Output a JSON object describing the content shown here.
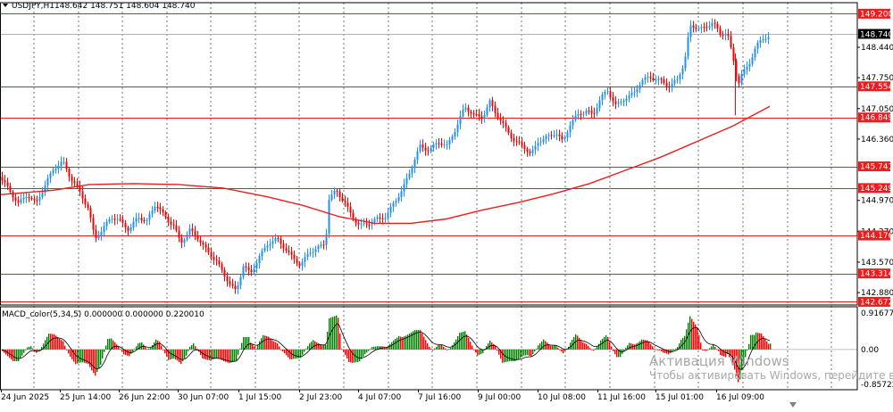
{
  "symbol_title": "USDJPY,H1",
  "ohlc_text": "148.642 148.751 148.604 148.740",
  "price_axis_labels": [
    "148.440",
    "147.750",
    "147.050",
    "146.360",
    "144.970",
    "144.270",
    "143.570",
    "142.880"
  ],
  "level_lines": [
    {
      "value": "149.200"
    },
    {
      "value": "147.554"
    },
    {
      "value": "146.849"
    },
    {
      "value": "145.741"
    },
    {
      "value": "145.249"
    },
    {
      "value": "144.176"
    },
    {
      "value": "143.314"
    },
    {
      "value": "142.672"
    }
  ],
  "current_price": "148.740",
  "indicator_title": "MACD_color(5,34,5) 0.000000 0.000000 0.220010",
  "indicator_axis": [
    "0.916773",
    "0.00",
    "-0.85722"
  ],
  "time_labels": [
    "24 Jun 2025",
    "25 Jun 14:00",
    "26 Jun 22:00",
    "30 Jun 07:00",
    "1 Jul 15:00",
    "2 Jul 23:00",
    "4 Jul 07:00",
    "7 Jul 16:00",
    "9 Jul 00:00",
    "10 Jul 08:00",
    "11 Jul 16:00",
    "15 Jul 01:00",
    "16 Jul 09:00"
  ],
  "watermark": {
    "line1": "Активация Windows",
    "line2": "Чтобы активировать Windows, перейдите в"
  },
  "colors": {
    "bull": "#1e90ff",
    "bear": "#ff0000",
    "ma": "#ee1c1c",
    "macd_up": "#008000",
    "macd_down": "#ff0000",
    "grid": "#000000"
  },
  "chart_data": {
    "type": "candlestick",
    "symbol": "USDJPY",
    "timeframe": "H1",
    "y_range": [
      142.6,
      149.45
    ],
    "approx_close_path": [
      [
        0,
        145.5
      ],
      [
        10,
        145.2
      ],
      [
        20,
        144.9
      ],
      [
        30,
        145.1
      ],
      [
        40,
        144.9
      ],
      [
        52,
        145.4
      ],
      [
        60,
        145.7
      ],
      [
        70,
        145.85
      ],
      [
        78,
        145.5
      ],
      [
        88,
        145.2
      ],
      [
        98,
        144.8
      ],
      [
        106,
        144.1
      ],
      [
        114,
        144.3
      ],
      [
        124,
        144.6
      ],
      [
        134,
        144.5
      ],
      [
        144,
        144.3
      ],
      [
        154,
        144.6
      ],
      [
        164,
        144.5
      ],
      [
        174,
        144.9
      ],
      [
        184,
        144.6
      ],
      [
        194,
        144.4
      ],
      [
        202,
        144.0
      ],
      [
        212,
        144.3
      ],
      [
        222,
        144.1
      ],
      [
        232,
        143.8
      ],
      [
        242,
        143.6
      ],
      [
        250,
        143.3
      ],
      [
        258,
        143.05
      ],
      [
        264,
        142.9
      ],
      [
        272,
        143.5
      ],
      [
        280,
        143.3
      ],
      [
        290,
        143.7
      ],
      [
        300,
        144.0
      ],
      [
        310,
        144.1
      ],
      [
        318,
        143.9
      ],
      [
        326,
        143.7
      ],
      [
        336,
        143.5
      ],
      [
        346,
        143.8
      ],
      [
        356,
        143.9
      ],
      [
        364,
        144.0
      ],
      [
        368,
        145.0
      ],
      [
        376,
        145.2
      ],
      [
        386,
        144.9
      ],
      [
        394,
        144.6
      ],
      [
        402,
        144.4
      ],
      [
        412,
        144.45
      ],
      [
        422,
        144.55
      ],
      [
        432,
        144.6
      ],
      [
        440,
        144.9
      ],
      [
        450,
        145.2
      ],
      [
        460,
        145.7
      ],
      [
        470,
        146.2
      ],
      [
        480,
        146.1
      ],
      [
        490,
        146.3
      ],
      [
        500,
        146.2
      ],
      [
        510,
        146.6
      ],
      [
        520,
        147.1
      ],
      [
        530,
        146.9
      ],
      [
        540,
        146.85
      ],
      [
        548,
        147.2
      ],
      [
        556,
        146.9
      ],
      [
        566,
        146.6
      ],
      [
        576,
        146.3
      ],
      [
        586,
        146.2
      ],
      [
        594,
        146.0
      ],
      [
        602,
        146.3
      ],
      [
        612,
        146.4
      ],
      [
        622,
        146.5
      ],
      [
        630,
        146.3
      ],
      [
        638,
        146.7
      ],
      [
        646,
        146.9
      ],
      [
        656,
        147.0
      ],
      [
        664,
        146.9
      ],
      [
        672,
        147.3
      ],
      [
        680,
        147.45
      ],
      [
        690,
        147.1
      ],
      [
        700,
        147.3
      ],
      [
        710,
        147.4
      ],
      [
        718,
        147.7
      ],
      [
        728,
        147.75
      ],
      [
        738,
        147.7
      ],
      [
        748,
        147.55
      ],
      [
        758,
        147.7
      ],
      [
        766,
        148.1
      ],
      [
        772,
        148.9
      ],
      [
        780,
        148.9
      ],
      [
        790,
        148.85
      ],
      [
        798,
        149.05
      ],
      [
        806,
        148.7
      ],
      [
        814,
        148.8
      ],
      [
        820,
        148.2
      ],
      [
        826,
        147.6
      ],
      [
        830,
        147.85
      ],
      [
        838,
        148.0
      ],
      [
        846,
        148.5
      ],
      [
        854,
        148.6
      ],
      [
        862,
        148.74
      ]
    ],
    "moving_average_path": [
      [
        0,
        145.1
      ],
      [
        60,
        145.2
      ],
      [
        100,
        145.33
      ],
      [
        150,
        145.35
      ],
      [
        200,
        145.33
      ],
      [
        250,
        145.25
      ],
      [
        300,
        145.05
      ],
      [
        340,
        144.85
      ],
      [
        380,
        144.6
      ],
      [
        420,
        144.45
      ],
      [
        460,
        144.45
      ],
      [
        500,
        144.55
      ],
      [
        540,
        144.75
      ],
      [
        580,
        144.92
      ],
      [
        620,
        145.12
      ],
      [
        660,
        145.35
      ],
      [
        700,
        145.65
      ],
      [
        740,
        145.95
      ],
      [
        780,
        146.3
      ],
      [
        820,
        146.65
      ],
      [
        862,
        147.1
      ]
    ],
    "macd_range": [
      -0.85722,
      0.916773
    ]
  }
}
